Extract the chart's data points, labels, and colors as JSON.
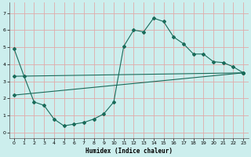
{
  "xlabel": "Humidex (Indice chaleur)",
  "bg_color": "#cceeed",
  "grid_color": "#e0aaaa",
  "line_color": "#1a6b5a",
  "xlim": [
    -0.5,
    23.5
  ],
  "ylim": [
    -0.3,
    7.6
  ],
  "xticks": [
    0,
    1,
    2,
    3,
    4,
    5,
    6,
    7,
    8,
    9,
    10,
    11,
    12,
    13,
    14,
    15,
    16,
    17,
    18,
    19,
    20,
    21,
    22,
    23
  ],
  "yticks": [
    0,
    1,
    2,
    3,
    4,
    5,
    6,
    7
  ],
  "line1_x": [
    0,
    1,
    2,
    3,
    4,
    5,
    6,
    7,
    8,
    9,
    10,
    11,
    12,
    13,
    14,
    15,
    16,
    17,
    18,
    19,
    20,
    21,
    22,
    23
  ],
  "line1_y": [
    4.9,
    3.3,
    1.8,
    1.6,
    0.8,
    0.4,
    0.5,
    0.6,
    0.8,
    1.1,
    1.8,
    5.05,
    6.0,
    5.9,
    6.7,
    6.5,
    5.6,
    5.2,
    4.6,
    4.6,
    4.15,
    4.1,
    3.85,
    3.5
  ],
  "line2_x": [
    0,
    23
  ],
  "line2_y": [
    3.3,
    3.5
  ],
  "line3_x": [
    0,
    23
  ],
  "line3_y": [
    2.2,
    3.5
  ],
  "marker_size": 2.0
}
